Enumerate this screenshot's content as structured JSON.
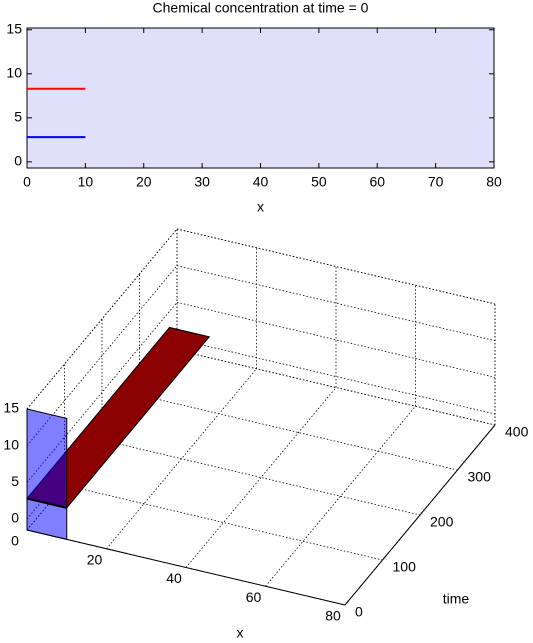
{
  "chart_data": [
    {
      "type": "line",
      "title": "Chemical concentration at time = 0",
      "xlabel": "x",
      "x": [
        0,
        10
      ],
      "series": [
        {
          "color": "#ff0000",
          "values": [
            8.3,
            8.3
          ]
        },
        {
          "color": "#0000ff",
          "values": [
            2.8,
            2.8
          ]
        }
      ],
      "xlim": [
        0,
        80
      ],
      "xticks": [
        0,
        10,
        20,
        30,
        40,
        50,
        60,
        70,
        80
      ],
      "ylim": [
        -0.7,
        15.2
      ],
      "yticks": [
        0,
        5,
        10,
        15
      ],
      "background": "#e0e0fb",
      "grid": false
    },
    {
      "type": "surface3d",
      "xlabel": "x",
      "ylabel": "time",
      "xlim": [
        0,
        80
      ],
      "xticks": [
        0,
        20,
        40,
        60,
        80
      ],
      "ylim": [
        0,
        400
      ],
      "yticks": [
        0,
        100,
        200,
        300,
        400
      ],
      "zlim": [
        -1.5,
        15
      ],
      "zticks": [
        0,
        5,
        10,
        15
      ],
      "grid": true,
      "planes": [
        {
          "color": "#8b0000",
          "opacity": 1,
          "x": [
            0,
            10
          ],
          "y": [
            0,
            380
          ],
          "z": [
            2.8,
            2.8
          ]
        },
        {
          "color": "#0000ff",
          "opacity": 0.5,
          "x": [
            0,
            10
          ],
          "y": [
            0,
            0
          ],
          "z": [
            -1.5,
            15
          ]
        }
      ],
      "lines": [
        {
          "color": "#000000",
          "x": [
            0,
            10
          ],
          "y": [
            0,
            0
          ],
          "z": [
            2.8,
            2.8
          ]
        }
      ]
    }
  ]
}
